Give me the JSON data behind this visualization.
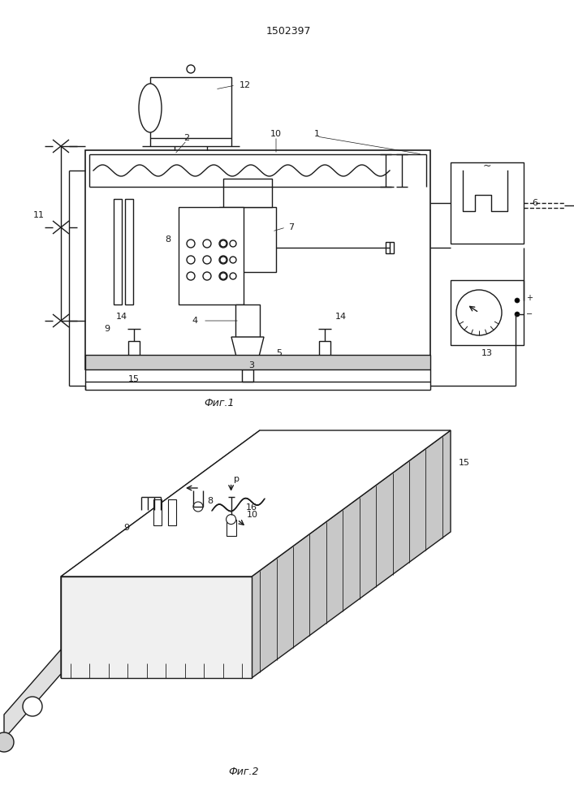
{
  "patent_number": "1502397",
  "fig1_caption": "Фиг.1",
  "fig2_caption": "Фиг.2",
  "bg_color": "#ffffff",
  "line_color": "#1a1a1a",
  "lw": 1.0
}
